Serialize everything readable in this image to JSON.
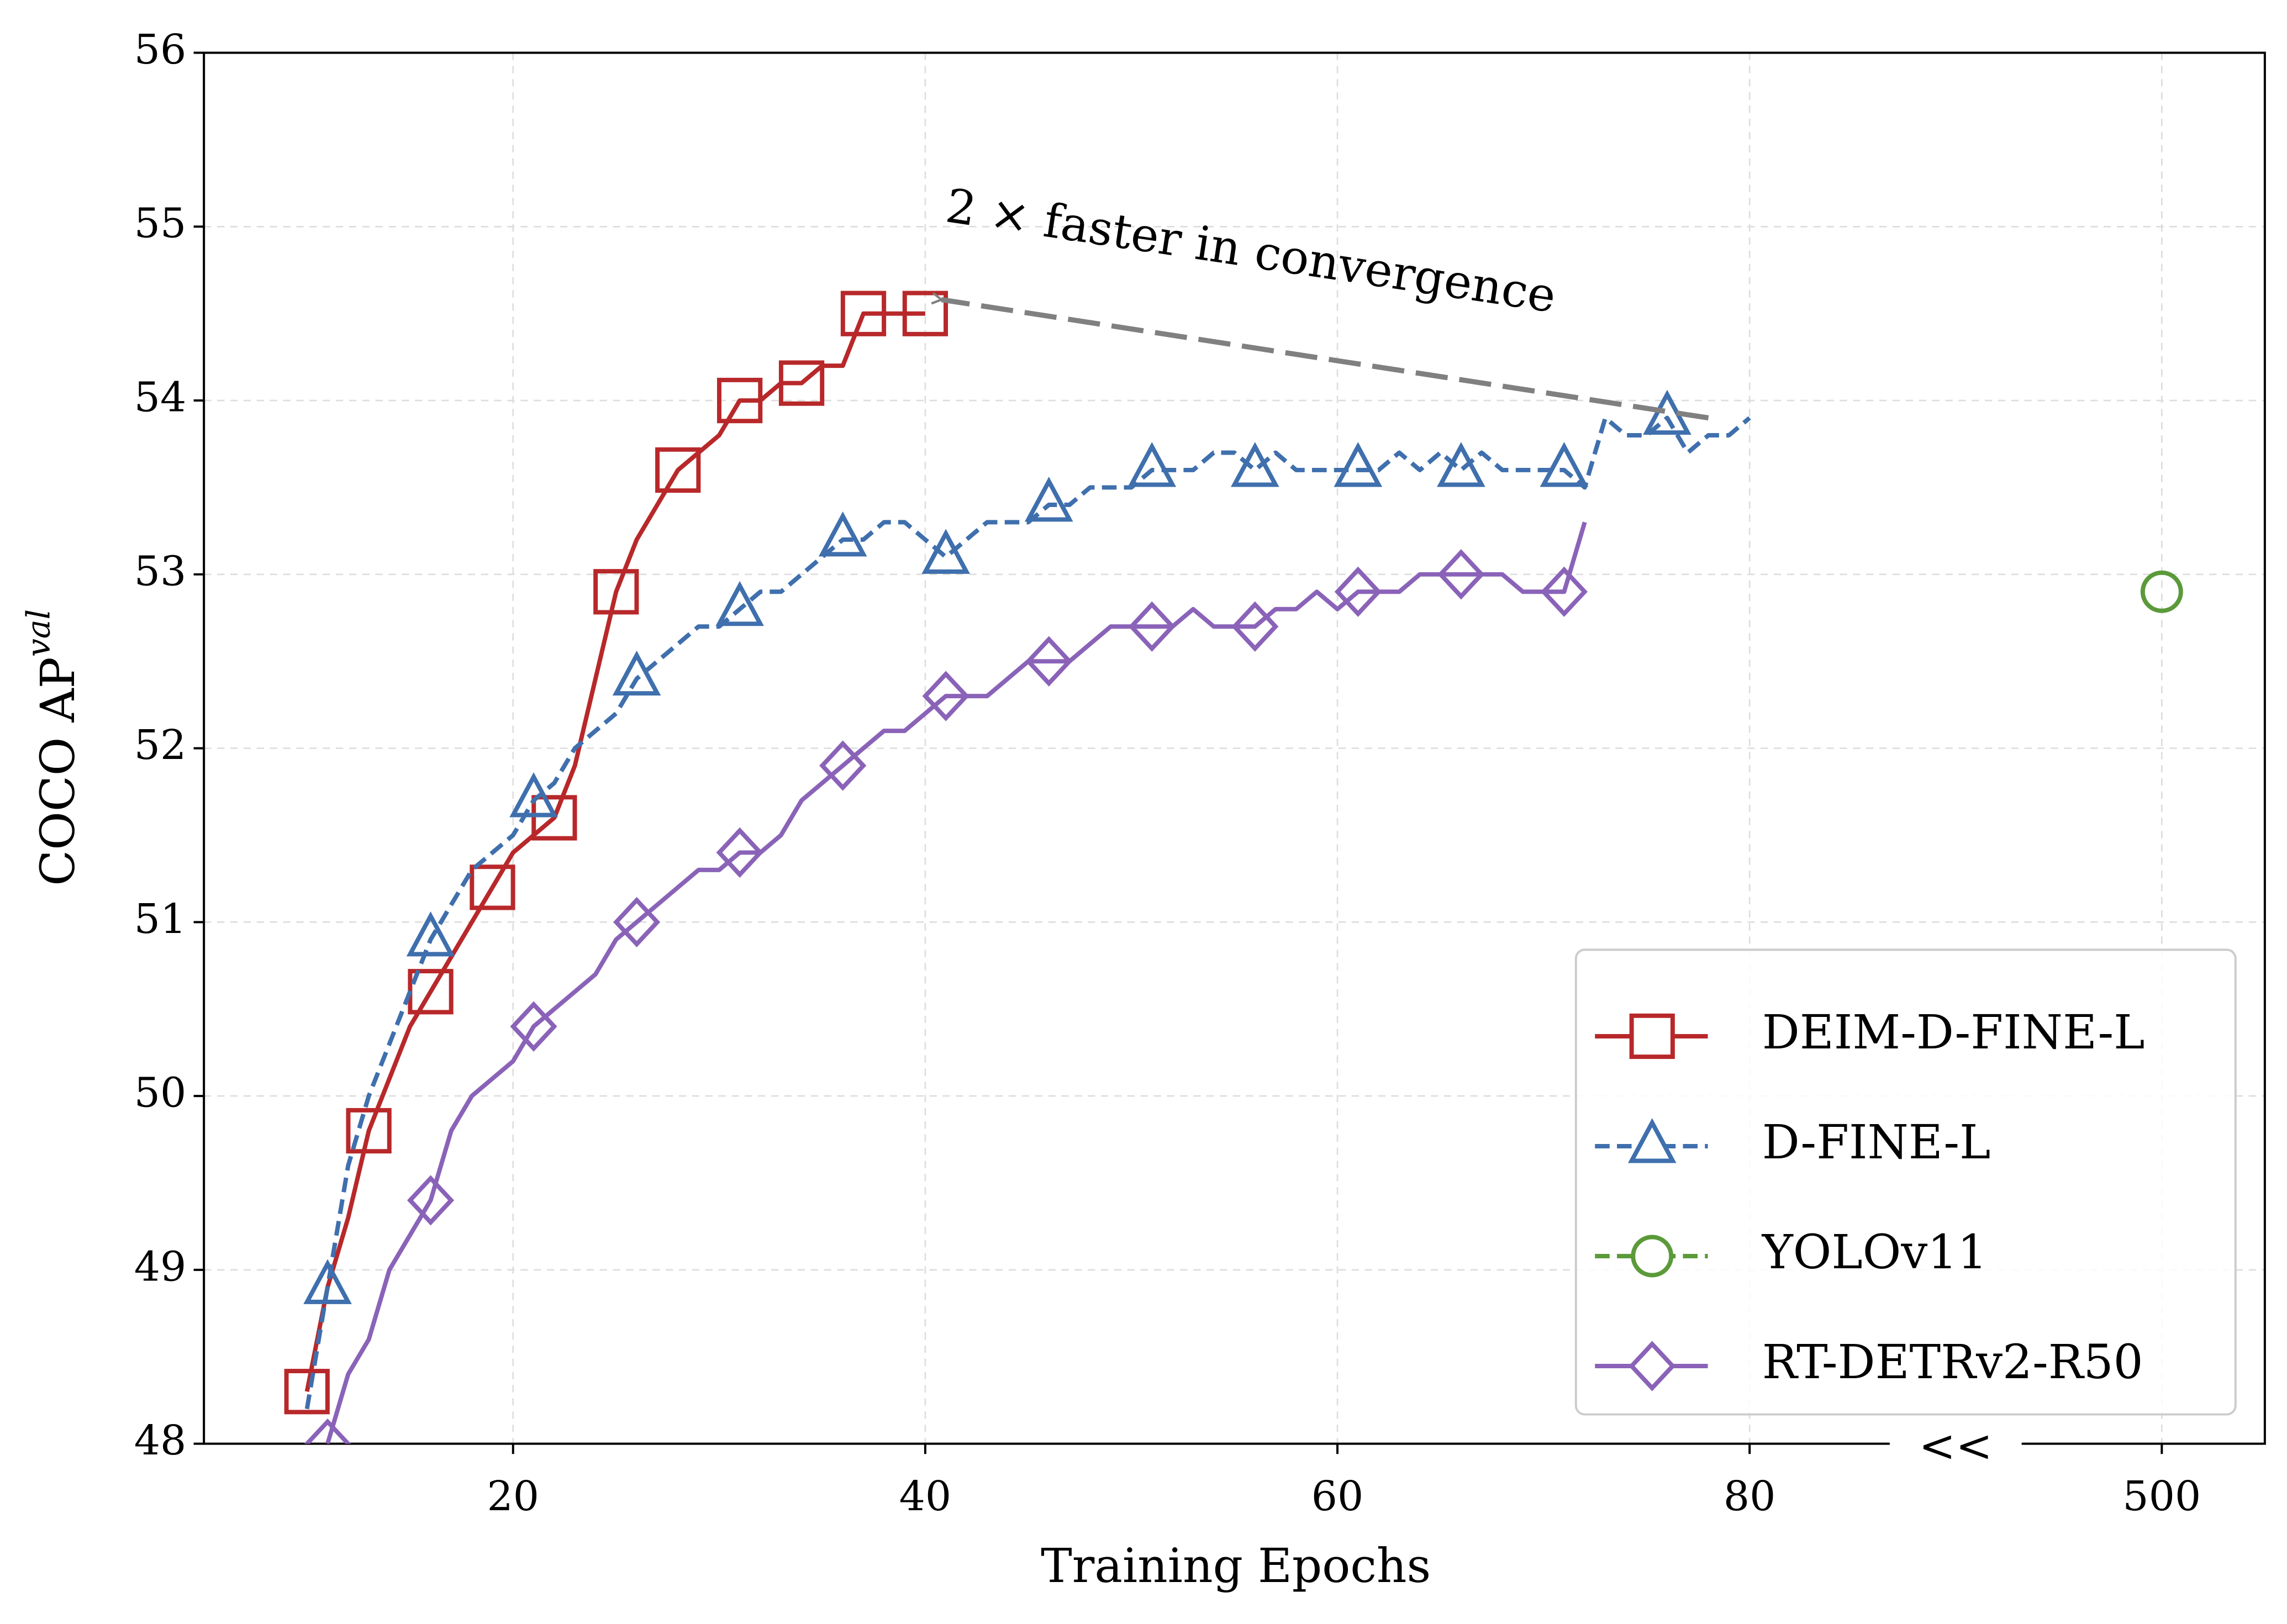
{
  "chart_data": {
    "type": "line",
    "xlabel": "Training Epochs",
    "ylabel": "COCO AP",
    "ylabel_sup": "val",
    "xlim": [
      5,
      505
    ],
    "xbreak": [
      85,
      495
    ],
    "xbreak_label": "<<",
    "xticks": [
      20,
      40,
      60,
      80,
      500
    ],
    "ylim": [
      48,
      56
    ],
    "yticks": [
      48,
      49,
      50,
      51,
      52,
      53,
      54,
      55,
      56
    ],
    "grid": true,
    "legend": "lower right",
    "series": [
      {
        "name": "DEIM-D-FINE-L",
        "color": "#b8282a",
        "marker": "s",
        "dash": false,
        "markevery": [
          0,
          3
        ],
        "x": [
          10,
          11,
          12,
          13,
          14,
          15,
          16,
          17,
          18,
          19,
          20,
          21,
          22,
          23,
          24,
          25,
          26,
          27,
          28,
          29,
          30,
          31,
          32,
          33,
          34,
          35,
          36,
          37,
          38,
          39,
          40
        ],
        "values": [
          48.3,
          48.9,
          49.3,
          49.8,
          50.1,
          50.4,
          50.6,
          50.8,
          51.0,
          51.2,
          51.4,
          51.5,
          51.6,
          51.9,
          52.4,
          52.9,
          53.2,
          53.4,
          53.6,
          53.7,
          53.8,
          54.0,
          54.0,
          54.1,
          54.1,
          54.2,
          54.2,
          54.5,
          54.5,
          54.5,
          54.5
        ]
      },
      {
        "name": "D-FINE-L",
        "color": "#3f6fad",
        "marker": "^",
        "dash": true,
        "markevery": [
          1,
          5
        ],
        "x": [
          10,
          11,
          12,
          13,
          14,
          15,
          16,
          17,
          18,
          19,
          20,
          21,
          22,
          23,
          24,
          25,
          26,
          27,
          28,
          29,
          30,
          31,
          32,
          33,
          34,
          35,
          36,
          37,
          38,
          39,
          40,
          41,
          42,
          43,
          44,
          45,
          46,
          47,
          48,
          49,
          50,
          51,
          52,
          53,
          54,
          55,
          56,
          57,
          58,
          59,
          60,
          61,
          62,
          63,
          64,
          65,
          66,
          67,
          68,
          69,
          70,
          71,
          72,
          73,
          74,
          75,
          76,
          77,
          78,
          79,
          80
        ],
        "values": [
          48.2,
          48.9,
          49.6,
          50.0,
          50.3,
          50.6,
          50.9,
          51.1,
          51.3,
          51.4,
          51.5,
          51.7,
          51.8,
          52.0,
          52.1,
          52.2,
          52.4,
          52.5,
          52.6,
          52.7,
          52.7,
          52.8,
          52.9,
          52.9,
          53.0,
          53.1,
          53.2,
          53.2,
          53.3,
          53.3,
          53.2,
          53.1,
          53.2,
          53.3,
          53.3,
          53.3,
          53.4,
          53.4,
          53.5,
          53.5,
          53.5,
          53.6,
          53.6,
          53.6,
          53.7,
          53.7,
          53.6,
          53.7,
          53.6,
          53.6,
          53.6,
          53.6,
          53.6,
          53.7,
          53.6,
          53.7,
          53.6,
          53.7,
          53.6,
          53.6,
          53.6,
          53.6,
          53.5,
          53.9,
          53.8,
          53.8,
          53.9,
          53.7,
          53.8,
          53.8,
          53.9
        ]
      },
      {
        "name": "YOLOv11",
        "color": "#5b9a3a",
        "marker": "o",
        "dash": true,
        "markevery": [
          0,
          1
        ],
        "x": [
          500
        ],
        "values": [
          52.9
        ]
      },
      {
        "name": "RT-DETRv2-R50",
        "color": "#8a63b8",
        "marker": "D",
        "dash": false,
        "markevery": [
          0,
          5
        ],
        "x": [
          11,
          12,
          13,
          14,
          15,
          16,
          17,
          18,
          19,
          20,
          21,
          22,
          23,
          24,
          25,
          26,
          27,
          28,
          29,
          30,
          31,
          32,
          33,
          34,
          35,
          36,
          37,
          38,
          39,
          40,
          41,
          42,
          43,
          44,
          45,
          46,
          47,
          48,
          49,
          50,
          51,
          52,
          53,
          54,
          55,
          56,
          57,
          58,
          59,
          60,
          61,
          62,
          63,
          64,
          65,
          66,
          67,
          68,
          69,
          70,
          71,
          72
        ],
        "values": [
          48.0,
          48.4,
          48.6,
          49.0,
          49.2,
          49.4,
          49.8,
          50.0,
          50.1,
          50.2,
          50.4,
          50.5,
          50.6,
          50.7,
          50.9,
          51.0,
          51.1,
          51.2,
          51.3,
          51.3,
          51.4,
          51.4,
          51.5,
          51.7,
          51.8,
          51.9,
          52.0,
          52.1,
          52.1,
          52.2,
          52.3,
          52.3,
          52.3,
          52.4,
          52.5,
          52.5,
          52.5,
          52.6,
          52.7,
          52.7,
          52.7,
          52.7,
          52.8,
          52.7,
          52.7,
          52.7,
          52.8,
          52.8,
          52.9,
          52.8,
          52.9,
          52.9,
          52.9,
          53.0,
          53.0,
          53.0,
          53.0,
          53.0,
          52.9,
          52.9,
          52.9,
          53.3
        ]
      }
    ],
    "annotations": [
      {
        "text": "2 ×  faster in convergence",
        "x": 41,
        "y": 55.1,
        "xy": [
          40.5,
          54.58
        ],
        "xytext": [
          78,
          53.9
        ],
        "color": "#808080"
      }
    ]
  }
}
